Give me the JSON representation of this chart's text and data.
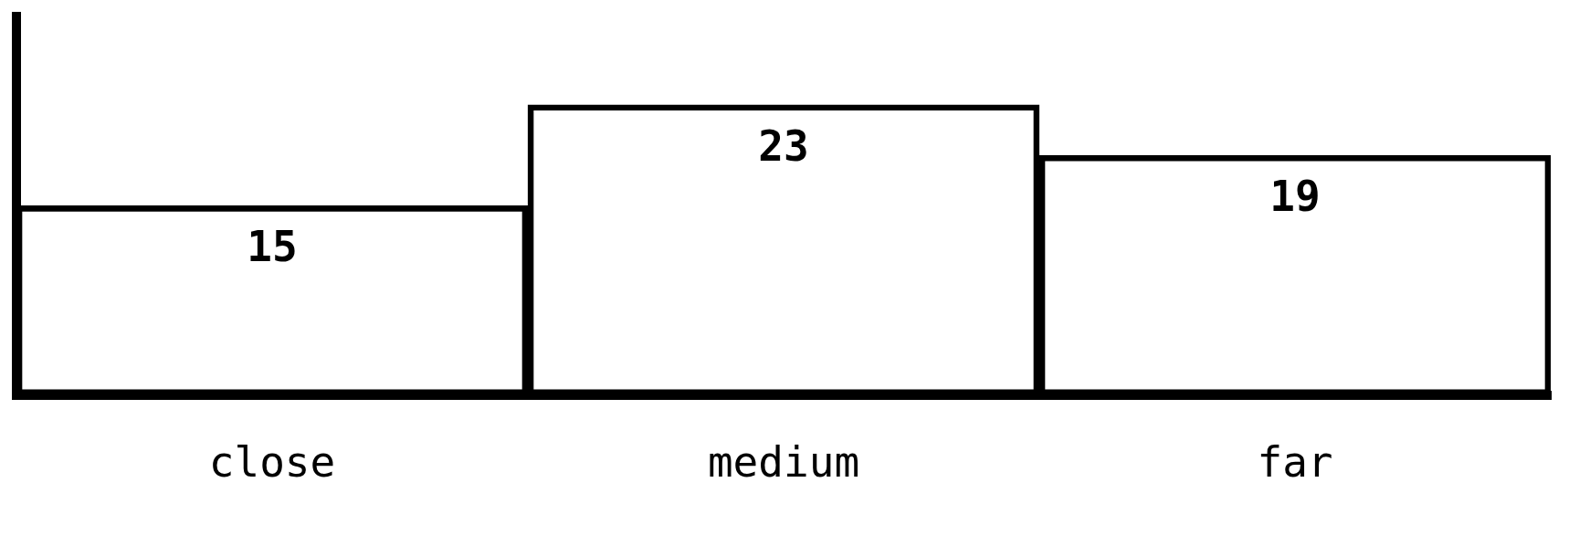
{
  "chart_data": {
    "type": "bar",
    "categories": [
      "close",
      "medium",
      "far"
    ],
    "values": [
      15,
      23,
      19
    ],
    "color": "#000000",
    "data_labels": true,
    "grid": false,
    "legend": false,
    "tick_labels": "x"
  }
}
